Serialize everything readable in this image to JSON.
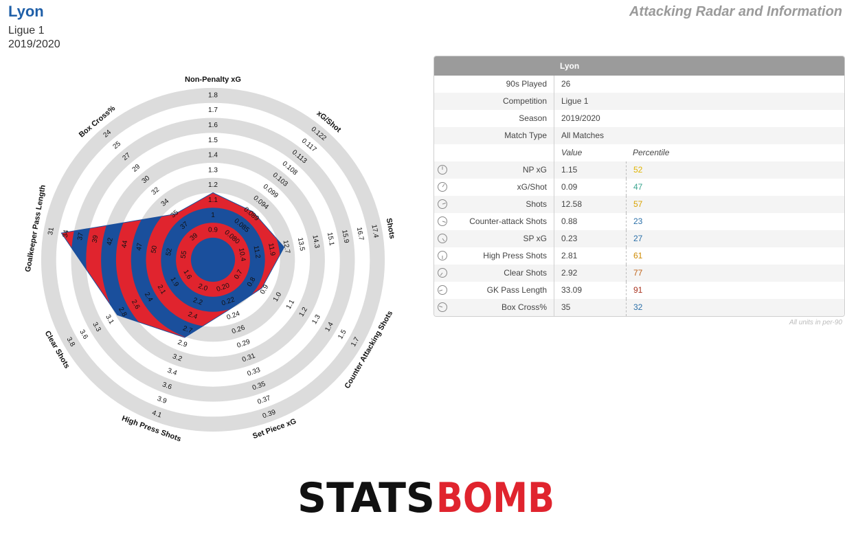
{
  "header": {
    "team": "Lyon",
    "competition": "Ligue 1",
    "season": "2019/2020",
    "title": "Attacking Radar and Information"
  },
  "chart_data": {
    "type": "radar",
    "band_colors": [
      "#1a4f9c",
      "#e0242e"
    ],
    "ring_colors": [
      "#dcdcdc",
      "#ffffff"
    ],
    "axes": [
      {
        "name": "Non-Penalty xG",
        "value": 1.15,
        "ticks": [
          0.9,
          1.0,
          1.1,
          1.2,
          1.3,
          1.4,
          1.5,
          1.6,
          1.7,
          1.8
        ]
      },
      {
        "name": "xG/Shot",
        "value": 0.09,
        "ticks": [
          {
            "value": 0.08,
            "label": "0.080"
          },
          0.085,
          0.089,
          0.094,
          0.099,
          0.103,
          0.108,
          0.113,
          0.117,
          0.122
        ]
      },
      {
        "name": "Shots",
        "value": 12.58,
        "ticks": [
          10.4,
          11.2,
          11.9,
          12.7,
          13.5,
          14.3,
          15.1,
          15.9,
          16.7,
          17.4
        ]
      },
      {
        "name": "Counter Attacking Shots",
        "value": 0.88,
        "ticks": [
          0.7,
          0.8,
          0.9,
          {
            "value": 1.0,
            "label": "1.0"
          },
          1.1,
          1.2,
          1.3,
          1.4,
          1.5,
          1.7
        ]
      },
      {
        "name": "Set Piece xG",
        "value": 0.23,
        "ticks": [
          {
            "value": 0.2,
            "label": "0.20"
          },
          0.22,
          0.24,
          0.26,
          0.29,
          0.31,
          0.33,
          0.35,
          0.37,
          0.39
        ]
      },
      {
        "name": "High Press Shots",
        "value": 2.81,
        "ticks": [
          {
            "value": 2.0,
            "label": "2.0"
          },
          2.2,
          2.4,
          2.7,
          2.9,
          3.2,
          3.4,
          3.6,
          3.9,
          4.1
        ]
      },
      {
        "name": "Clear Shots",
        "value": 2.92,
        "ticks": [
          1.6,
          1.9,
          2.1,
          2.4,
          2.6,
          2.8,
          3.1,
          3.3,
          3.6,
          3.8
        ]
      },
      {
        "name": "Goalkeeper Pass Length",
        "value": 33.09,
        "ticks": [
          55,
          52,
          50,
          47,
          44,
          42,
          39,
          37,
          34,
          31
        ]
      },
      {
        "name": "Box Cross%",
        "value": 35,
        "ticks": [
          39,
          37,
          35,
          34,
          32,
          30,
          29,
          27,
          25,
          24
        ]
      }
    ]
  },
  "table": {
    "title": "Lyon",
    "info": [
      [
        "90s Played",
        26
      ],
      [
        "Competition",
        "Ligue 1"
      ],
      [
        "Season",
        "2019/2020"
      ],
      [
        "Match Type",
        "All Matches"
      ]
    ],
    "columns": [
      "Value",
      "Percentile"
    ],
    "rows": [
      {
        "label": "NP xG",
        "value": 1.15,
        "percentile": 52,
        "color": "#e0b400"
      },
      {
        "label": "xG/Shot",
        "value": 0.09,
        "percentile": 47,
        "color": "#3aa58f"
      },
      {
        "label": "Shots",
        "value": 12.58,
        "percentile": 57,
        "color": "#d9a300"
      },
      {
        "label": "Counter-attack Shots",
        "value": 0.88,
        "percentile": 23,
        "color": "#2a6fa8"
      },
      {
        "label": "SP xG",
        "value": 0.23,
        "percentile": 27,
        "color": "#2a6fa8"
      },
      {
        "label": "High Press Shots",
        "value": 2.81,
        "percentile": 61,
        "color": "#cf8a00"
      },
      {
        "label": "Clear Shots",
        "value": 2.92,
        "percentile": 77,
        "color": "#c0641a"
      },
      {
        "label": "GK Pass Length",
        "value": 33.09,
        "percentile": 91,
        "color": "#a8321e"
      },
      {
        "label": "Box Cross%",
        "value": 35,
        "percentile": 32,
        "color": "#2a6fa8"
      }
    ],
    "note": "All units in per-90"
  },
  "logo": {
    "left": "STATS",
    "right": "BOMB"
  }
}
